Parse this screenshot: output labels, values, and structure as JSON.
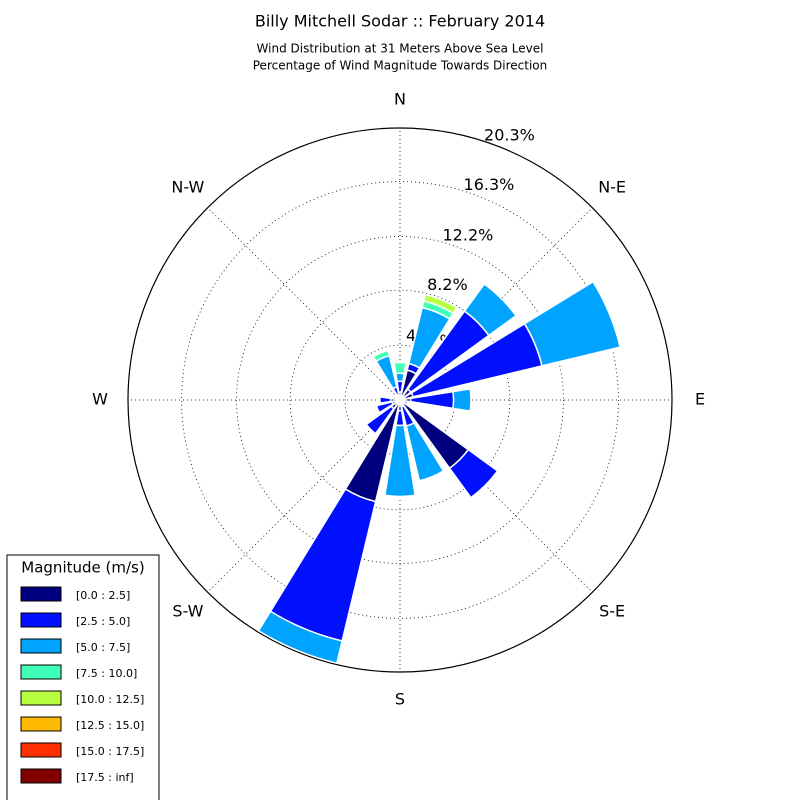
{
  "chart_data": {
    "type": "windrose",
    "title": "Billy Mitchell Sodar :: February 2014",
    "subtitle": [
      "Wind Distribution at 31 Meters Above Sea Level",
      "Percentage of Wind Magnitude Towards Direction"
    ],
    "categories": [
      "N",
      null,
      "N-E",
      null,
      "E",
      null,
      "S-E",
      null,
      "S",
      null,
      "S-W",
      null,
      "W",
      null,
      "N-W",
      null
    ],
    "ylim": [
      0,
      20.3
    ],
    "yticks": [
      {
        "value": 4.1,
        "label": "4.1%"
      },
      {
        "value": 8.2,
        "label": "8.2%"
      },
      {
        "value": 12.2,
        "label": "12.2%"
      },
      {
        "value": 16.3,
        "label": "16.3%"
      },
      {
        "value": 20.3,
        "label": "20.3%"
      }
    ],
    "grid": true,
    "legend_title": "Magnitude (m/s)",
    "legend_position": "lower left",
    "series": [
      {
        "name": "[0.0 : 2.5]",
        "color": "#00007f",
        "values": [
          0.6,
          2.3,
          1.0,
          1.0,
          0.8,
          0.3,
          6.3,
          0.5,
          0.8,
          7.8,
          0.8,
          0.6,
          0.7,
          0.3,
          0.2,
          0.4
        ]
      },
      {
        "name": "[2.5 : 5.0]",
        "color": "#0010ff",
        "values": [
          0.8,
          0.5,
          7.2,
          9.9,
          3.2,
          0.3,
          2.7,
          1.5,
          1.1,
          10.7,
          2.3,
          1.2,
          0.8,
          0.2,
          0.2,
          0.6
        ]
      },
      {
        "name": "[5.0 : 7.5]",
        "color": "#00a4ff",
        "values": [
          0.6,
          4.3,
          2.5,
          6.0,
          1.3,
          0,
          0,
          4.2,
          5.3,
          1.7,
          0,
          0,
          0,
          0,
          0,
          2.4
        ]
      },
      {
        "name": "[7.5 : 10.0]",
        "color": "#40ffb7",
        "values": [
          0.8,
          0.5,
          0,
          0,
          0,
          0,
          0,
          0,
          0,
          0,
          0,
          0,
          0,
          0,
          0,
          0.4
        ]
      },
      {
        "name": "[10.0 : 12.5]",
        "color": "#b7ff40",
        "values": [
          0,
          0.5,
          0,
          0,
          0,
          0,
          0,
          0,
          0,
          0,
          0,
          0,
          0,
          0,
          0,
          0
        ]
      },
      {
        "name": "[12.5 : 15.0]",
        "color": "#ffb900",
        "values": [
          0,
          0,
          0,
          0,
          0,
          0,
          0,
          0,
          0,
          0,
          0,
          0,
          0,
          0,
          0,
          0
        ]
      },
      {
        "name": "[15.0 : 17.5]",
        "color": "#ff3000",
        "values": [
          0,
          0,
          0,
          0,
          0,
          0,
          0,
          0,
          0,
          0,
          0,
          0,
          0,
          0,
          0,
          0
        ]
      },
      {
        "name": "[17.5 : inf]",
        "color": "#7f0000",
        "values": [
          0,
          0,
          0,
          0,
          0,
          0,
          0,
          0,
          0,
          0,
          0,
          0,
          0,
          0,
          0,
          0
        ]
      }
    ]
  }
}
